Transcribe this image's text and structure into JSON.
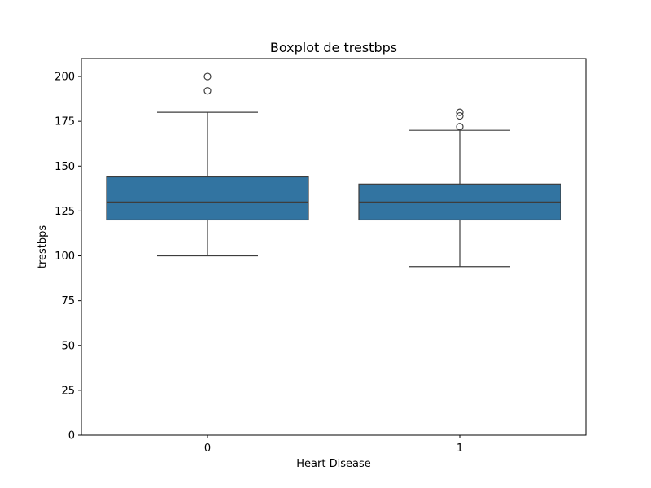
{
  "chart_data": {
    "type": "boxplot",
    "title": "Boxplot de trestbps",
    "xlabel": "Heart Disease",
    "ylabel": "trestbps",
    "ylim": [
      0,
      210
    ],
    "yticks": [
      0,
      25,
      50,
      75,
      100,
      125,
      150,
      175,
      200
    ],
    "categories": [
      "0",
      "1"
    ],
    "boxes": [
      {
        "category": "0",
        "whisker_low": 100,
        "q1": 120,
        "median": 130,
        "q3": 144,
        "whisker_high": 180,
        "outliers": [
          192,
          200
        ]
      },
      {
        "category": "1",
        "whisker_low": 94,
        "q1": 120,
        "median": 130,
        "q3": 140,
        "whisker_high": 170,
        "outliers": [
          172,
          178,
          180
        ]
      }
    ],
    "box_color": "#3274a1",
    "line_color": "#3d3d3d"
  }
}
